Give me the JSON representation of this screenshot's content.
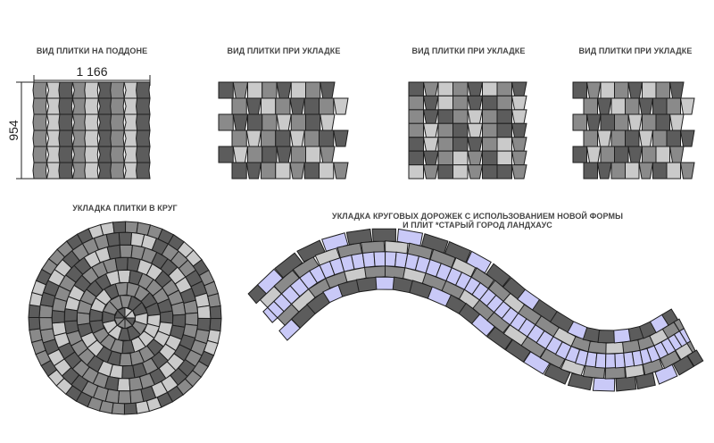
{
  "captions": {
    "pallet": "ВИД ПЛИТКИ НА ПОДДОНЕ",
    "laying_1": "ВИД ПЛИТКИ ПРИ УКЛАДКЕ",
    "laying_2": "ВИД ПЛИТКИ ПРИ УКЛАДКЕ",
    "laying_3": "ВИД ПЛИТКИ ПРИ УКЛАДКЕ",
    "circle": "УКЛАДКА ПЛИТКИ В КРУГ",
    "path_line1": "УКЛАДКА КРУГОВЫХ ДОРОЖЕК С ИСПОЛЬЗОВАНИЕМ НОВОЙ ФОРМЫ",
    "path_line2": "И ПЛИТ *СТАРЫЙ ГОРОД ЛАНДХАУС"
  },
  "dimensions": {
    "width": "1 166",
    "height": "954"
  },
  "colors": {
    "dark": "#5c5c5c",
    "mid": "#8a8a8a",
    "light": "#cacaca",
    "lavender": "#c9c9f7",
    "grout": "#1e1e1e"
  }
}
